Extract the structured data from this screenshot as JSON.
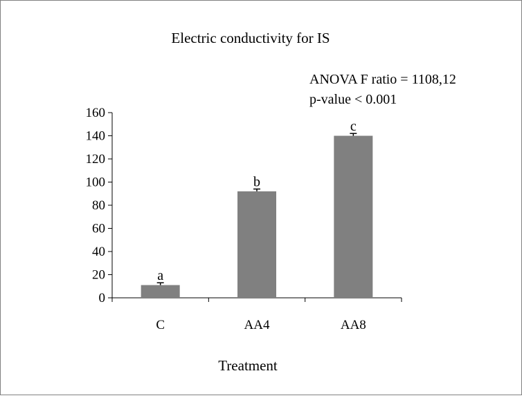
{
  "chart_data": {
    "type": "bar",
    "title": "Electric conductivity for IS",
    "xlabel": "Treatment",
    "ylabel": "",
    "categories": [
      "C",
      "AA4",
      "AA8"
    ],
    "values": [
      11,
      92,
      140
    ],
    "errors": [
      2,
      2,
      2
    ],
    "significance_letters": [
      "a",
      "b",
      "c"
    ],
    "ylim": [
      0,
      160
    ],
    "yticks": [
      0,
      20,
      40,
      60,
      80,
      100,
      120,
      140,
      160
    ],
    "annotations": [
      "ANOVA F ratio = 1108,12",
      "p-value < 0.001"
    ],
    "bar_color": "#808080",
    "grid": false,
    "legend": "none"
  }
}
